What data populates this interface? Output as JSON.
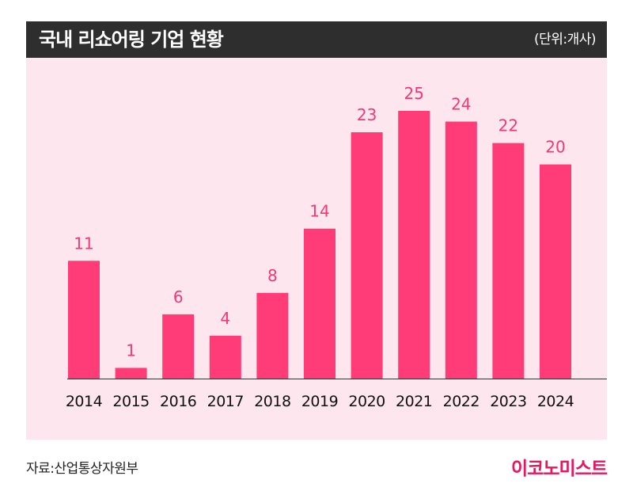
{
  "header": {
    "title": "국내 리쇼어링 기업 현황",
    "unit": "(단위:개사)"
  },
  "source": "자료:산업통상자원부",
  "brand": "이코노미스트",
  "colors": {
    "bar": "#ff3c78",
    "value_label": "#f03a74",
    "header_bg": "#2e2e2e",
    "plot_bg": "#fde6ee",
    "brand": "#e6175c"
  },
  "chart_data": {
    "type": "bar",
    "title": "국내 리쇼어링 기업 현황",
    "unit": "(단위:개사)",
    "categories": [
      "2014",
      "2015",
      "2016",
      "2017",
      "2018",
      "2019",
      "2020",
      "2021",
      "2022",
      "2023",
      "2024"
    ],
    "values": [
      11,
      1,
      6,
      4,
      8,
      14,
      23,
      25,
      24,
      22,
      20
    ],
    "ylim": [
      0,
      25
    ],
    "grid": false,
    "legend": "none"
  }
}
